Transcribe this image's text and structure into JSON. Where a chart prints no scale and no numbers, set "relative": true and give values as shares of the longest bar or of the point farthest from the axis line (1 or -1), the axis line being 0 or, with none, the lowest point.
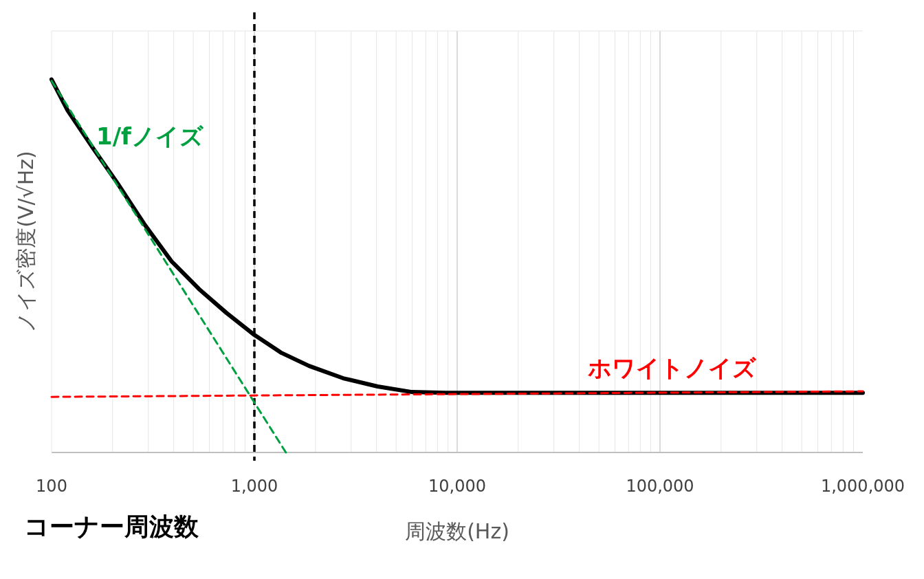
{
  "chart_data": {
    "type": "line",
    "relative": true,
    "xlabel": "周波数(Hz)",
    "ylabel": "ノイズ密度(V/√Hz)",
    "log": "x",
    "xlim": [
      100,
      1000000
    ],
    "xticks": [
      {
        "value": 100,
        "label": "100"
      },
      {
        "value": 1000,
        "label": "1,000"
      },
      {
        "value": 10000,
        "label": "10,000"
      },
      {
        "value": 100000,
        "label": "100,000"
      },
      {
        "value": 1000000,
        "label": "1,000,000"
      }
    ],
    "grid": "x",
    "series": [
      {
        "color": "#000000",
        "line_style": "solid",
        "x": [
          100,
          120,
          160,
          210,
          286,
          391,
          534,
          729,
          1000,
          1360,
          1860,
          2740,
          4050,
          5980,
          8830,
          1000000
        ],
        "values": [
          1.0,
          0.917,
          0.816,
          0.724,
          0.613,
          0.512,
          0.438,
          0.374,
          0.315,
          0.267,
          0.232,
          0.199,
          0.177,
          0.162,
          0.16,
          0.16
        ]
      },
      {
        "name": "1/fノイズ",
        "color": "#00a040",
        "line_style": "dashed",
        "x": [
          100,
          1430
        ],
        "values": [
          0.996,
          0
        ]
      },
      {
        "name": "ホワイトノイズ",
        "color": "#ff0000",
        "line_style": "dashed",
        "x": [
          100,
          1000000
        ],
        "values": [
          0.149,
          0.164
        ]
      }
    ],
    "ref_lines": [
      {
        "axis": "x",
        "value": 1000,
        "color": "#000000",
        "line_style": "dashed"
      }
    ],
    "annotations": [
      "コーナー周波数"
    ]
  }
}
